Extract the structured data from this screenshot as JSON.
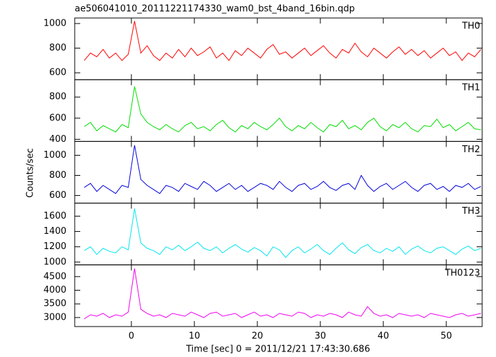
{
  "chart_data": {
    "type": "line",
    "title": "ae506041010_20111221174330_wam0_bst_4band_16bin.qdp",
    "xlabel": "Time [sec] 0 = 2011/12/21 17:43:30.686",
    "ylabel": "Counts/sec",
    "xlim": [
      -9,
      55.7
    ],
    "xticks": [
      0,
      10,
      20,
      30,
      40,
      50
    ],
    "x": [
      -7.5,
      -6.5,
      -5.5,
      -4.5,
      -3.5,
      -2.5,
      -1.5,
      -0.5,
      0.5,
      1.5,
      2.5,
      3.5,
      4.5,
      5.5,
      6.5,
      7.5,
      8.5,
      9.5,
      10.5,
      11.5,
      12.5,
      13.5,
      14.5,
      15.5,
      16.5,
      17.5,
      18.5,
      19.5,
      20.5,
      21.5,
      22.5,
      23.5,
      24.5,
      25.5,
      26.5,
      27.5,
      28.5,
      29.5,
      30.5,
      31.5,
      32.5,
      33.5,
      34.5,
      35.5,
      36.5,
      37.5,
      38.5,
      39.5,
      40.5,
      41.5,
      42.5,
      43.5,
      44.5,
      45.5,
      46.5,
      47.5,
      48.5,
      49.5,
      50.5,
      51.5,
      52.5,
      53.5,
      54.5,
      55.5
    ],
    "panels": [
      {
        "name": "TH0",
        "color": "#ff0000",
        "ylim": [
          544,
          1045
        ],
        "yticks": [
          600,
          800,
          1000
        ],
        "values": [
          700,
          760,
          730,
          790,
          720,
          760,
          700,
          750,
          1020,
          760,
          820,
          740,
          700,
          760,
          720,
          790,
          730,
          800,
          740,
          770,
          810,
          720,
          760,
          700,
          780,
          740,
          800,
          760,
          720,
          790,
          830,
          750,
          770,
          720,
          760,
          800,
          740,
          780,
          820,
          760,
          720,
          790,
          760,
          840,
          770,
          730,
          800,
          760,
          720,
          770,
          810,
          750,
          790,
          740,
          780,
          720,
          760,
          800,
          740,
          770,
          700,
          760,
          730,
          790
        ]
      },
      {
        "name": "TH1",
        "color": "#00dd00",
        "ylim": [
          380,
          964
        ],
        "yticks": [
          400,
          600,
          800
        ],
        "values": [
          520,
          560,
          480,
          530,
          500,
          470,
          540,
          510,
          900,
          640,
          560,
          520,
          490,
          540,
          500,
          470,
          530,
          560,
          500,
          520,
          480,
          540,
          580,
          510,
          470,
          530,
          500,
          560,
          520,
          490,
          540,
          600,
          520,
          480,
          530,
          500,
          560,
          510,
          470,
          540,
          520,
          580,
          500,
          530,
          490,
          560,
          600,
          520,
          480,
          540,
          510,
          560,
          500,
          470,
          530,
          520,
          590,
          510,
          540,
          480,
          520,
          560,
          500,
          490
        ]
      },
      {
        "name": "TH2",
        "color": "#0000dd",
        "ylim": [
          524,
          1138
        ],
        "yticks": [
          600,
          800,
          1000
        ],
        "values": [
          680,
          720,
          640,
          700,
          660,
          620,
          700,
          680,
          1100,
          760,
          700,
          660,
          620,
          700,
          680,
          640,
          720,
          690,
          660,
          740,
          700,
          640,
          680,
          720,
          660,
          700,
          640,
          680,
          720,
          700,
          660,
          740,
          680,
          640,
          700,
          720,
          660,
          690,
          740,
          680,
          650,
          700,
          720,
          660,
          800,
          700,
          640,
          690,
          720,
          660,
          700,
          740,
          680,
          640,
          700,
          720,
          660,
          690,
          640,
          700,
          680,
          720,
          660,
          690
        ]
      },
      {
        "name": "TH3",
        "color": "#00e5ee",
        "ylim": [
          964,
          1770
        ],
        "yticks": [
          1000,
          1200,
          1400,
          1600
        ],
        "values": [
          1150,
          1200,
          1100,
          1180,
          1140,
          1120,
          1200,
          1160,
          1700,
          1250,
          1180,
          1150,
          1100,
          1200,
          1160,
          1220,
          1150,
          1200,
          1260,
          1180,
          1150,
          1200,
          1120,
          1180,
          1230,
          1170,
          1130,
          1190,
          1150,
          1080,
          1200,
          1160,
          1060,
          1150,
          1200,
          1120,
          1170,
          1230,
          1150,
          1100,
          1180,
          1250,
          1160,
          1110,
          1190,
          1230,
          1150,
          1120,
          1180,
          1140,
          1200,
          1100,
          1170,
          1210,
          1150,
          1120,
          1180,
          1200,
          1150,
          1100,
          1170,
          1210,
          1150,
          1180
        ]
      },
      {
        "name": "TH0123",
        "color": "#ee00ee",
        "ylim": [
          2669,
          4932
        ],
        "yticks": [
          3000,
          3500,
          4000,
          4500
        ],
        "values": [
          2950,
          3100,
          3050,
          3150,
          3000,
          3100,
          3050,
          3200,
          4800,
          3300,
          3150,
          3050,
          3100,
          3000,
          3150,
          3100,
          3050,
          3200,
          3100,
          3000,
          3150,
          3200,
          3050,
          3100,
          3150,
          3000,
          3100,
          3200,
          3050,
          3100,
          3000,
          3150,
          3100,
          3050,
          3200,
          3150,
          3000,
          3100,
          3050,
          3150,
          3100,
          3000,
          3200,
          3100,
          3050,
          3400,
          3150,
          3050,
          3100,
          3000,
          3150,
          3100,
          3050,
          3100,
          3000,
          3150,
          3100,
          3050,
          3000,
          3100,
          3150,
          3050,
          3100,
          3150
        ]
      }
    ]
  }
}
